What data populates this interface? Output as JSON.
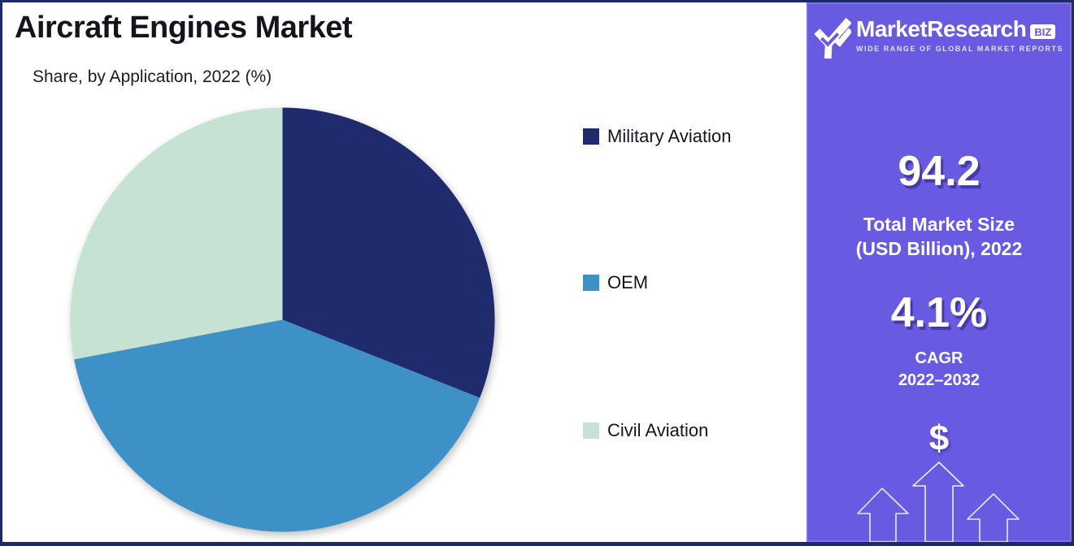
{
  "header": {
    "title": "Aircraft Engines Market",
    "subtitle": "Share, by Application, 2022 (%)"
  },
  "chart_data": {
    "type": "pie",
    "title": "Aircraft Engines Market",
    "subtitle": "Share, by Application, 2022 (%)",
    "unit": "percent share",
    "direction": "clockwise",
    "start_angle_deg": 0,
    "legend_position": "right",
    "slices": [
      {
        "label": "Military Aviation",
        "value": 31,
        "color": "#1f2b6d"
      },
      {
        "label": "OEM",
        "value": 41,
        "color": "#3d91c6"
      },
      {
        "label": "Civil Aviation",
        "value": 28,
        "color": "#c6e2d3"
      }
    ]
  },
  "panel": {
    "background_color": "#695ae2",
    "logo": {
      "brand": "MarketResearch",
      "badge": "BIZ",
      "tagline": "WIDE RANGE OF GLOBAL MARKET REPORTS"
    },
    "market_size": {
      "value": "94.2",
      "label_line1": "Total Market Size",
      "label_line2": "(USD Billion), 2022"
    },
    "cagr": {
      "value": "4.1%",
      "label_line1": "CAGR",
      "label_line2": "2022–2032"
    },
    "dollar_icon": "$"
  },
  "frame": {
    "border_color": "#1e2a6b",
    "background": "#ffffff"
  }
}
